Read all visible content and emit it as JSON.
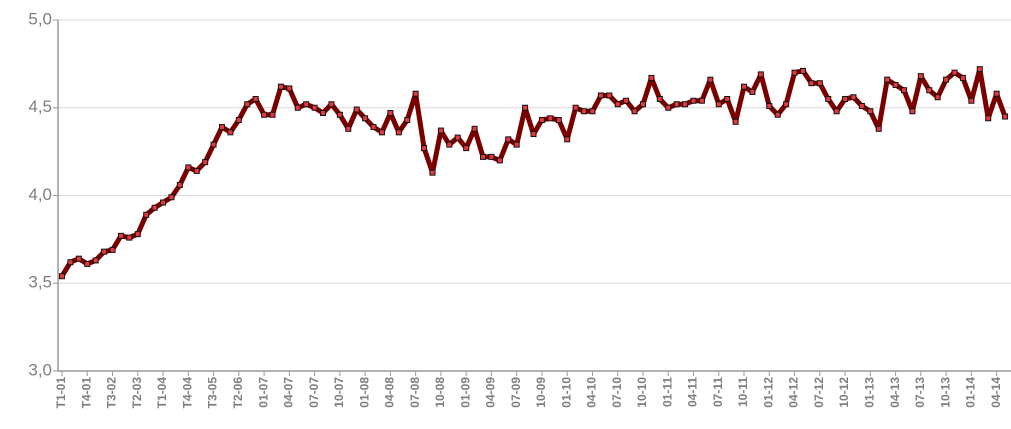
{
  "chart_data": {
    "type": "line",
    "categories": [
      "T1-01",
      null,
      null,
      "T4-01",
      null,
      null,
      "T3-02",
      null,
      null,
      "T2-03",
      null,
      null,
      "T1-04",
      null,
      null,
      "T4-04",
      null,
      null,
      "T3-05",
      null,
      null,
      "T2-06",
      null,
      null,
      "01-07",
      null,
      null,
      "04-07",
      null,
      null,
      "07-07",
      null,
      null,
      "10-07",
      null,
      null,
      "01-08",
      null,
      null,
      "04-08",
      null,
      null,
      "07-08",
      null,
      null,
      "10-08",
      null,
      null,
      "01-09",
      null,
      null,
      "04-09",
      null,
      null,
      "07-09",
      null,
      null,
      "10-09",
      null,
      null,
      "01-10",
      null,
      null,
      "04-10",
      null,
      null,
      "07-10",
      null,
      null,
      "10-10",
      null,
      null,
      "01-11",
      null,
      null,
      "04-11",
      null,
      null,
      "07-11",
      null,
      null,
      "10-11",
      null,
      null,
      "01-12",
      null,
      null,
      "04-12",
      null,
      null,
      "07-12",
      null,
      null,
      "10-12",
      null,
      null,
      "01-13",
      null,
      null,
      "04-13",
      null,
      null,
      "07-13",
      null,
      null,
      "10-13",
      null,
      null,
      "01-14",
      null,
      null,
      "04-14",
      null
    ],
    "values": [
      3.54,
      3.62,
      3.64,
      3.61,
      3.63,
      3.68,
      3.69,
      3.77,
      3.76,
      3.78,
      3.89,
      3.93,
      3.96,
      3.99,
      4.06,
      4.16,
      4.14,
      4.19,
      4.29,
      4.39,
      4.36,
      4.43,
      4.52,
      4.55,
      4.46,
      4.46,
      4.62,
      4.61,
      4.5,
      4.52,
      4.5,
      4.47,
      4.52,
      4.46,
      4.38,
      4.49,
      4.44,
      4.39,
      4.36,
      4.47,
      4.36,
      4.43,
      4.58,
      4.27,
      4.13,
      4.37,
      4.29,
      4.33,
      4.27,
      4.38,
      4.22,
      4.22,
      4.2,
      4.32,
      4.29,
      4.5,
      4.35,
      4.43,
      4.44,
      4.43,
      4.32,
      4.5,
      4.48,
      4.48,
      4.57,
      4.57,
      4.52,
      4.54,
      4.48,
      4.52,
      4.67,
      4.55,
      4.5,
      4.52,
      4.52,
      4.54,
      4.54,
      4.66,
      4.52,
      4.55,
      4.42,
      4.62,
      4.59,
      4.69,
      4.51,
      4.46,
      4.52,
      4.7,
      4.71,
      4.64,
      4.64,
      4.55,
      4.48,
      4.55,
      4.56,
      4.51,
      4.48,
      4.38,
      4.66,
      4.63,
      4.6,
      4.48,
      4.68,
      4.6,
      4.56,
      4.66,
      4.7,
      4.67,
      4.54,
      4.72,
      4.44,
      4.58,
      4.45
    ],
    "color": "#7a0000",
    "marker_color": "#e8383d",
    "ylim": [
      3,
      5
    ],
    "yticks": [
      {
        "value": 3,
        "label": "3,0"
      },
      {
        "value": 3.5,
        "label": "3,5"
      },
      {
        "value": 4,
        "label": "4,0"
      },
      {
        "value": 4.5,
        "label": "4,5"
      },
      {
        "value": 5,
        "label": "5,0"
      }
    ],
    "grid": true
  }
}
